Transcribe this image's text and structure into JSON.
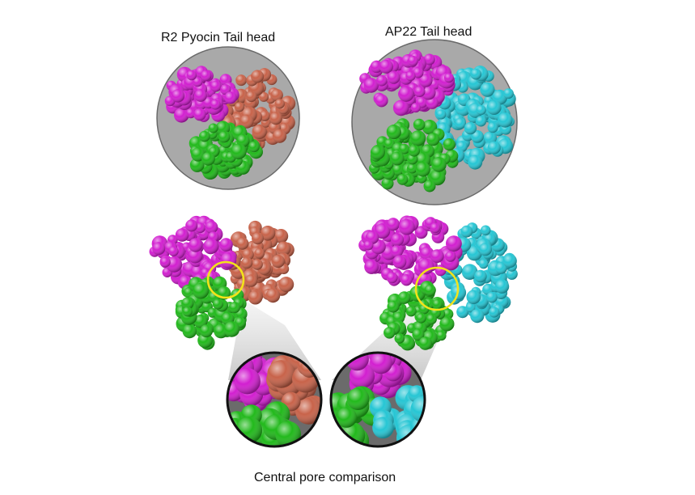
{
  "labels": {
    "left_title": "R2 Pyocin Tail head",
    "right_title": "AP22 Tail head",
    "caption": "Central pore comparison"
  },
  "colors": {
    "magenta": "#d21fd0",
    "salmon": "#c8634a",
    "green": "#22b91c",
    "cyan": "#26c6d4",
    "backdrop": "#a9a9a9",
    "highlight_ring": "#f3e31a"
  },
  "panels": [
    {
      "name": "r2-top-view",
      "chains": [
        "magenta",
        "salmon",
        "green"
      ]
    },
    {
      "name": "ap22-top-view",
      "chains": [
        "magenta",
        "cyan",
        "green"
      ]
    },
    {
      "name": "r2-side-view",
      "chains": [
        "magenta",
        "salmon",
        "green"
      ]
    },
    {
      "name": "ap22-side-view",
      "chains": [
        "magenta",
        "cyan",
        "green"
      ]
    },
    {
      "name": "r2-pore-zoom",
      "chains": [
        "magenta",
        "salmon",
        "green"
      ]
    },
    {
      "name": "ap22-pore-zoom",
      "chains": [
        "magenta",
        "cyan",
        "green"
      ]
    }
  ]
}
